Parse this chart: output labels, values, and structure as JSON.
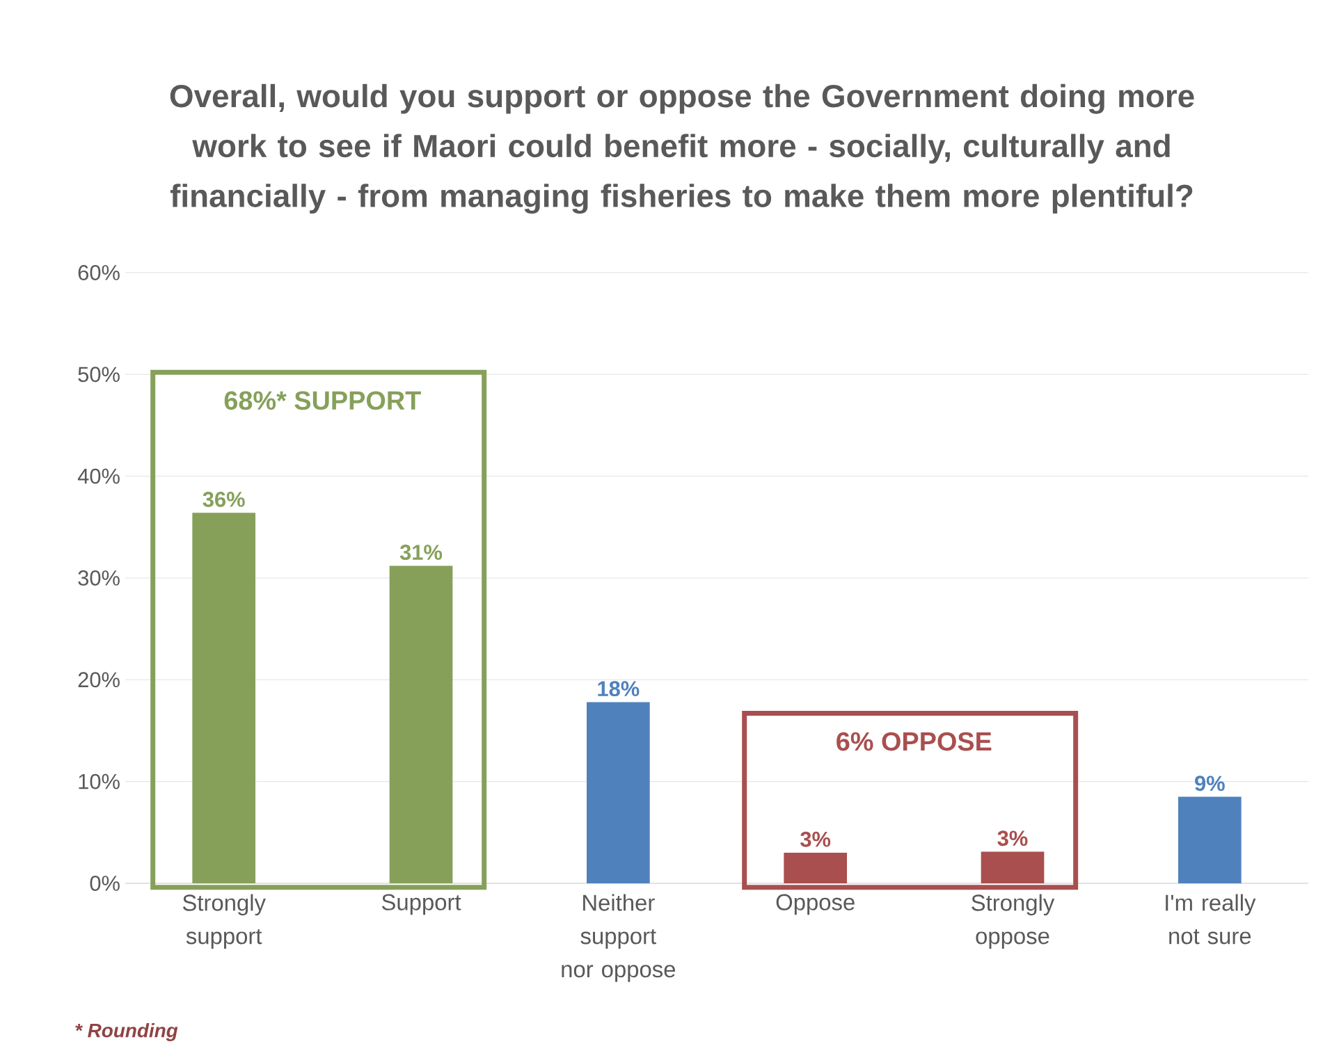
{
  "chart_data": {
    "type": "bar",
    "title": "Overall, would you support or oppose the Government doing more work to see if Maori could benefit more - socially, culturally and financially - from managing fisheries to make them more plentiful?",
    "categories": [
      "Strongly support",
      "Support",
      "Neither support nor oppose",
      "Oppose",
      "Strongly oppose",
      "I'm really not sure"
    ],
    "values": [
      36.4,
      31.2,
      17.8,
      3.0,
      3.1,
      8.5
    ],
    "value_labels": [
      "36%",
      "31%",
      "18%",
      "3%",
      "3%",
      "9%"
    ],
    "colors": [
      "#86a05a",
      "#86a05a",
      "#4f81bd",
      "#a94f4f",
      "#a94f4f",
      "#4f81bd"
    ],
    "ylim": [
      0,
      60
    ],
    "yticks": [
      {
        "value": 0,
        "label": "0%"
      },
      {
        "value": 10,
        "label": "10%"
      },
      {
        "value": 20,
        "label": "20%"
      },
      {
        "value": 30,
        "label": "30%"
      },
      {
        "value": 40,
        "label": "40%"
      },
      {
        "value": 50,
        "label": "50%"
      },
      {
        "value": 60,
        "label": "60%"
      }
    ],
    "grid": "y",
    "annotations": [
      "68%* SUPPORT",
      "6% OPPOSE",
      "* Rounding"
    ]
  }
}
